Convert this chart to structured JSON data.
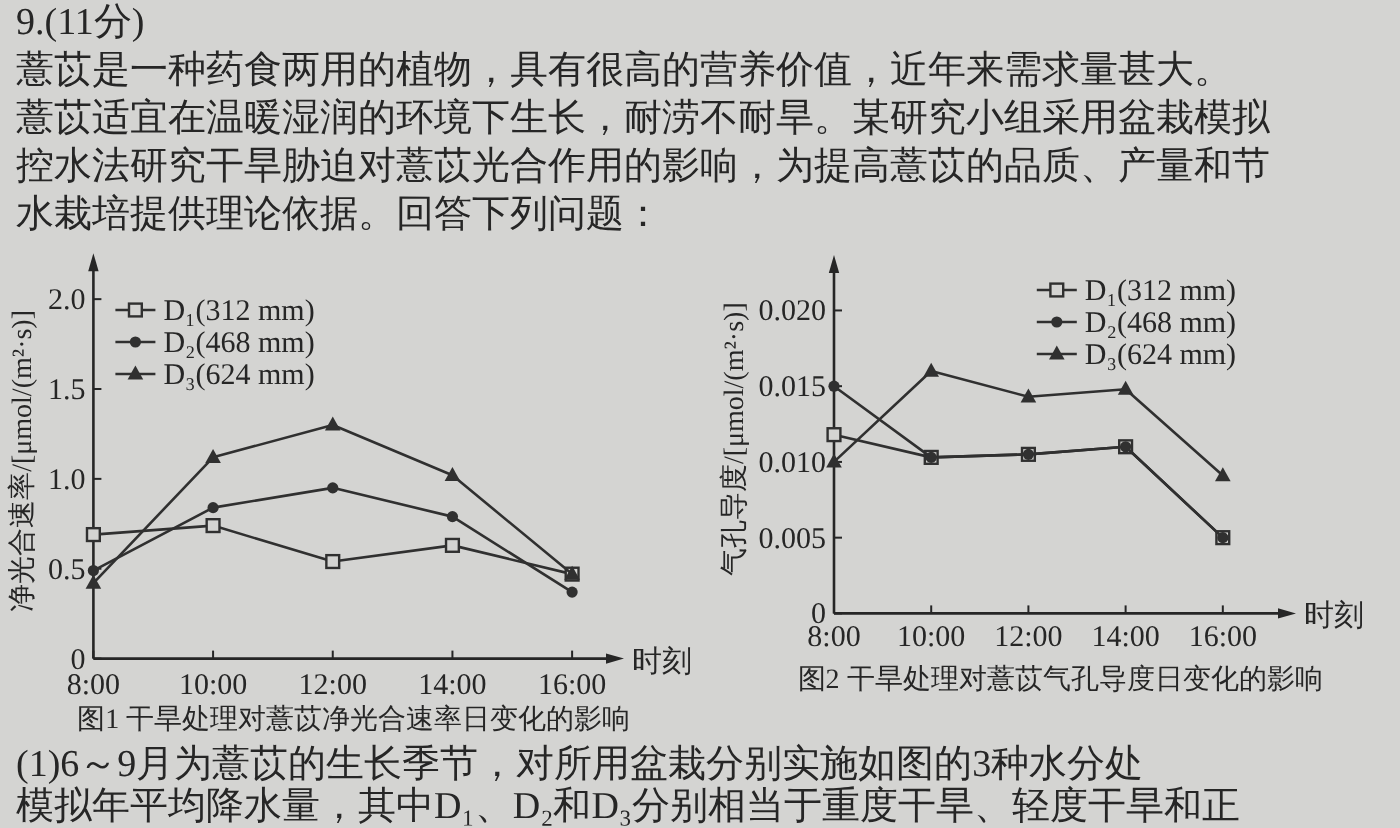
{
  "chart_data": [
    {
      "type": "other",
      "annotations": [
        "9.(11分)",
        "薏苡是一种药食两用的植物，具有很高的营养价值，近年来需求量甚大。",
        "薏苡适宜在温暖湿润的环境下生长，耐涝不耐旱。某研究小组采用盆栽模拟",
        "控水法研究干旱胁迫对薏苡光合作用的影响，为提高薏苡的品质、产量和节",
        "水栽培提供理论依据。回答下列问题："
      ]
    },
    {
      "type": "line",
      "title": "图1 干旱处理对薏苡净光合速率日变化的影响",
      "xlabel": "时刻",
      "ylabel": "净光合速率/[μmol/(m²·s)]",
      "x": [
        8,
        10,
        12,
        14,
        16
      ],
      "xlim": [
        8,
        16.7
      ],
      "xticks": [
        {
          "value": 8,
          "label": "8:00"
        },
        {
          "value": 10,
          "label": "10:00"
        },
        {
          "value": 12,
          "label": "12:00"
        },
        {
          "value": 14,
          "label": "14:00"
        },
        {
          "value": 16,
          "label": "16:00"
        }
      ],
      "ylim": [
        0,
        2.2
      ],
      "yticks": [
        0,
        0.5,
        {
          "value": 1,
          "label": "1.0"
        },
        1.5,
        {
          "value": 2,
          "label": "2.0"
        }
      ],
      "legend": "top left",
      "series": [
        {
          "name": "D₁(312 mm)",
          "color": "#303030",
          "marker": "square",
          "values": [
            0.69,
            0.74,
            0.54,
            0.63,
            0.47
          ]
        },
        {
          "name": "D₂(468 mm)",
          "color": "#303030",
          "marker": "circle",
          "values": [
            0.49,
            0.84,
            0.95,
            0.79,
            0.37
          ]
        },
        {
          "name": "D₃(624 mm)",
          "color": "#303030",
          "marker": "triangle",
          "values": [
            0.42,
            1.12,
            1.3,
            1.02,
            0.47
          ]
        }
      ]
    },
    {
      "type": "line",
      "title": "图2 干旱处理对薏苡气孔导度日变化的影响",
      "xlabel": "时刻",
      "ylabel": "气孔导度/[μmol/(m²·s)]",
      "x": [
        8,
        10,
        12,
        14,
        16
      ],
      "xlim": [
        8,
        17.3
      ],
      "xticks": [
        {
          "value": 8,
          "label": "8:00"
        },
        {
          "value": 10,
          "label": "10:00"
        },
        {
          "value": 12,
          "label": "12:00"
        },
        {
          "value": 14,
          "label": "14:00"
        },
        {
          "value": 16,
          "label": "16:00"
        }
      ],
      "ylim": [
        0,
        0.023
      ],
      "yticks": [
        0,
        0.005,
        {
          "value": 0.01,
          "label": "0.010"
        },
        0.015,
        {
          "value": 0.02,
          "label": "0.020"
        }
      ],
      "legend": "top right",
      "series": [
        {
          "name": "D₁(312 mm)",
          "color": "#303030",
          "marker": "square",
          "values": [
            0.0118,
            0.0103,
            0.0105,
            0.011,
            0.005
          ]
        },
        {
          "name": "D₂(468 mm)",
          "color": "#303030",
          "marker": "circle",
          "values": [
            0.015,
            0.0103,
            0.0105,
            0.011,
            0.005
          ]
        },
        {
          "name": "D₃(624 mm)",
          "color": "#303030",
          "marker": "triangle",
          "values": [
            0.01,
            0.016,
            0.0143,
            0.0148,
            0.0091
          ]
        }
      ]
    },
    {
      "type": "other",
      "annotations": [
        "(1)6～9月为薏苡的生长季节，对所用盆栽分别实施如图的3种水分处",
        "模拟年平均降水量，其中D₁、D₂和D₃分别相当于重度干旱、轻度干旱和正"
      ]
    }
  ]
}
